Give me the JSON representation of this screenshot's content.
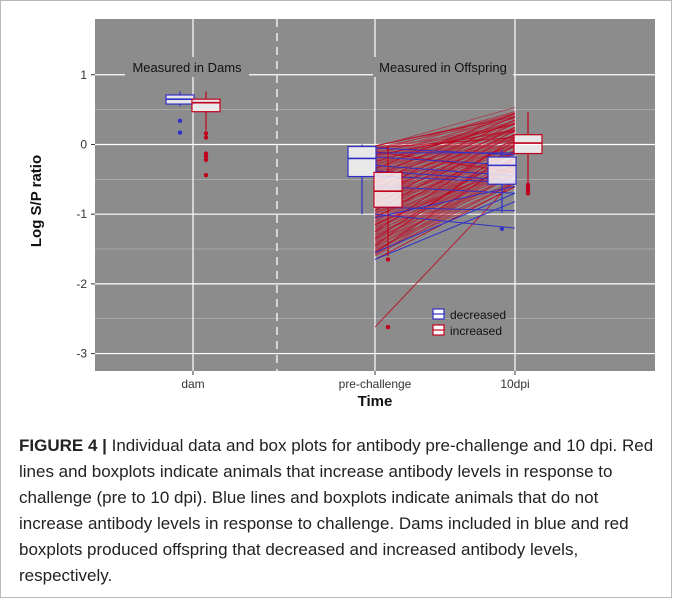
{
  "caption": {
    "label": "FIGURE 4 |",
    "text": "Individual data and box plots for antibody pre-challenge and 10 dpi. Red lines and boxplots indicate animals that increase antibody levels in response to challenge (pre to 10 dpi). Blue lines and boxplots indicate animals that do not increase antibody levels in response to challenge. Dams included in blue and red boxplots produced offspring that decreased and increased antibody levels, respectively."
  },
  "colors": {
    "panel_bg": "#8c8c8c",
    "grid": "#ffffff",
    "decreased": "#3030c8",
    "increased": "#c0001c",
    "divider": "#d6d6d6"
  },
  "chart_data": {
    "type": "box",
    "xlabel": "Time",
    "ylabel": "Log S/P ratio",
    "categories": [
      "dam",
      "pre-challenge",
      "10dpi"
    ],
    "ylim": [
      -3.25,
      1.8
    ],
    "yticks": [
      1,
      0,
      -1,
      -2,
      -3
    ],
    "ytick_labels": [
      "1",
      "0",
      "-1",
      "-2",
      "-3"
    ],
    "grid": true,
    "legend_position": "bottom-right",
    "annotations": [
      "Measured in Dams",
      "Measured in Offspring"
    ],
    "series": [
      {
        "name": "decreased",
        "color": "#3030c8",
        "boxes": [
          {
            "category": "dam",
            "whisker_low": 0.55,
            "q1": 0.58,
            "median": 0.65,
            "q3": 0.71,
            "whisker_high": 0.76,
            "outliers": [
              0.34,
              0.17
            ]
          },
          {
            "category": "pre-challenge",
            "whisker_low": -1.0,
            "q1": -0.46,
            "median": -0.2,
            "q3": -0.03,
            "whisker_high": 0.0,
            "outliers": []
          },
          {
            "category": "10dpi",
            "whisker_low": -0.98,
            "q1": -0.57,
            "median": -0.3,
            "q3": -0.18,
            "whisker_high": -0.08,
            "outliers": [
              -1.21
            ]
          }
        ]
      },
      {
        "name": "increased",
        "color": "#c0001c",
        "boxes": [
          {
            "category": "dam",
            "whisker_low": 0.2,
            "q1": 0.47,
            "median": 0.6,
            "q3": 0.65,
            "whisker_high": 0.76,
            "outliers": [
              0.16,
              0.1,
              -0.13,
              -0.17,
              -0.22,
              -0.44
            ]
          },
          {
            "category": "pre-challenge",
            "whisker_low": -1.6,
            "q1": -0.9,
            "median": -0.67,
            "q3": -0.4,
            "whisker_high": -0.02,
            "outliers": [
              -1.65,
              -2.62
            ]
          },
          {
            "category": "10dpi",
            "whisker_low": -0.55,
            "q1": -0.13,
            "median": 0.02,
            "q3": 0.14,
            "whisker_high": 0.46,
            "outliers": [
              -0.58,
              -0.62,
              -0.66,
              -0.7
            ]
          }
        ]
      }
    ],
    "individual_lines": {
      "decreased": [
        [
          -0.05,
          -0.15
        ],
        [
          -0.18,
          -0.3
        ],
        [
          -0.3,
          -0.45
        ],
        [
          -0.45,
          -0.55
        ],
        [
          -0.6,
          -0.7
        ],
        [
          -0.9,
          -0.95
        ],
        [
          -1.0,
          -1.2
        ],
        [
          -1.05,
          -0.6
        ],
        [
          -1.55,
          -0.7
        ],
        [
          -1.65,
          -0.82
        ],
        [
          -0.12,
          -0.12
        ],
        [
          -0.38,
          -0.52
        ]
      ],
      "increased": [
        [
          -2.62,
          -0.5
        ],
        [
          -1.65,
          -0.6
        ],
        [
          -1.55,
          -0.2
        ],
        [
          -1.45,
          0.0
        ],
        [
          -1.35,
          -0.1
        ],
        [
          -1.25,
          0.1
        ],
        [
          -1.15,
          -0.3
        ],
        [
          -1.05,
          0.05
        ],
        [
          -0.95,
          0.15
        ],
        [
          -0.85,
          0.2
        ],
        [
          -0.75,
          0.25
        ],
        [
          -0.65,
          0.3
        ],
        [
          -0.55,
          0.35
        ],
        [
          -0.45,
          0.4
        ],
        [
          -0.35,
          0.45
        ],
        [
          -0.25,
          0.3
        ],
        [
          -0.15,
          0.2
        ],
        [
          -0.05,
          0.1
        ],
        [
          -0.02,
          0.4
        ],
        [
          -0.1,
          -0.4
        ]
      ]
    }
  }
}
